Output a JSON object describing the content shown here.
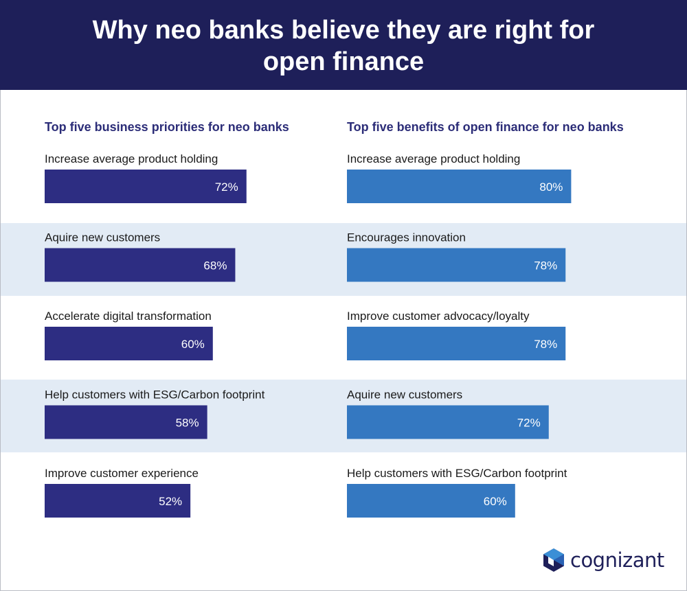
{
  "header": {
    "title": "Why neo banks believe they are right for open finance"
  },
  "colors": {
    "header_bg": "#1e1f59",
    "left_bars": "#2d2d82",
    "right_bars": "#3478c1",
    "band": "#e2ebf5"
  },
  "chart_data": [
    {
      "type": "bar",
      "orientation": "horizontal",
      "title": "Top five business priorities for neo banks",
      "categories": [
        "Increase average product holding",
        "Aquire new customers",
        "Accelerate digital transformation",
        "Help customers with ESG/Carbon footprint",
        "Improve customer experience"
      ],
      "values": [
        72,
        68,
        60,
        58,
        52
      ],
      "value_labels": [
        "72%",
        "68%",
        "60%",
        "58%",
        "52%"
      ],
      "unit": "%",
      "color": "#2d2d82",
      "xlim": [
        0,
        100
      ]
    },
    {
      "type": "bar",
      "orientation": "horizontal",
      "title": "Top five benefits of open finance for neo banks",
      "categories": [
        "Increase average product holding",
        "Encourages innovation",
        "Improve customer advocacy/loyalty",
        "Aquire new customers",
        "Help customers with ESG/Carbon footprint"
      ],
      "values": [
        80,
        78,
        78,
        72,
        60
      ],
      "value_labels": [
        "80%",
        "78%",
        "78%",
        "72%",
        "60%"
      ],
      "unit": "%",
      "color": "#3478c1",
      "xlim": [
        0,
        100
      ]
    }
  ],
  "logo": {
    "text": "cognizant",
    "icon": "cognizant-hexagon-icon"
  }
}
